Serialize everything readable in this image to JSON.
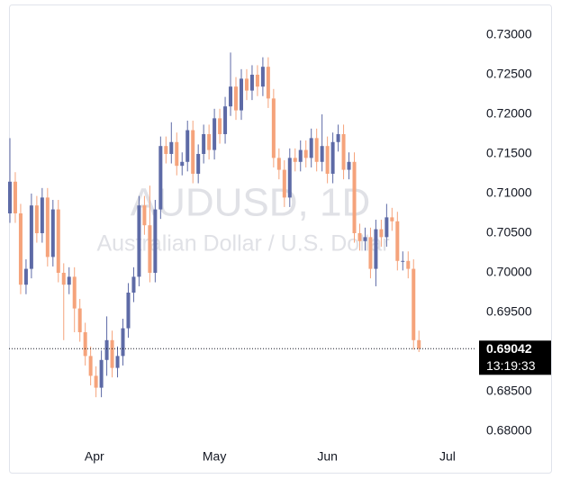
{
  "chart_data": {
    "type": "candlestick",
    "title": "AUDUSD, 1D",
    "subtitle": "Australian Dollar / U.S. Dollar",
    "open": [
      0.7075,
      0.7115,
      0.7075,
      0.6985,
      0.7005,
      0.7085,
      0.705,
      0.7095,
      0.702,
      0.708,
      0.7,
      0.6985,
      0.6995,
      0.6955,
      0.6925,
      0.6895,
      0.687,
      0.6855,
      0.689,
      0.6915,
      0.688,
      0.6895,
      0.693,
      0.6975,
      0.6995,
      0.7085,
      0.706,
      0.7,
      0.708,
      0.716,
      0.715,
      0.7165,
      0.7135,
      0.714,
      0.718,
      0.7125,
      0.715,
      0.7175,
      0.7155,
      0.7195,
      0.7175,
      0.721,
      0.7235,
      0.7205,
      0.7245,
      0.723,
      0.725,
      0.7235,
      0.726,
      0.722,
      0.7145,
      0.713,
      0.7095,
      0.7145,
      0.714,
      0.7155,
      0.7145,
      0.717,
      0.714,
      0.716,
      0.7125,
      0.7165,
      0.7175,
      0.713,
      0.714,
      0.705,
      0.704,
      0.7045,
      0.7005,
      0.7055,
      0.7045,
      0.707,
      0.7065,
      0.7015,
      0.7015,
      0.7005,
      0.6915
    ],
    "high": [
      0.717,
      0.7127,
      0.7087,
      0.7017,
      0.71,
      0.7097,
      0.7107,
      0.7107,
      0.7092,
      0.7092,
      0.7012,
      0.7007,
      0.7007,
      0.6967,
      0.6937,
      0.6907,
      0.6882,
      0.6902,
      0.6945,
      0.6927,
      0.6907,
      0.6942,
      0.6987,
      0.7007,
      0.7097,
      0.7097,
      0.711,
      0.7092,
      0.7172,
      0.7172,
      0.719,
      0.7177,
      0.7152,
      0.7192,
      0.7192,
      0.7162,
      0.7187,
      0.7187,
      0.7207,
      0.7207,
      0.7222,
      0.7278,
      0.7247,
      0.7257,
      0.7257,
      0.7262,
      0.7262,
      0.7272,
      0.7272,
      0.7232,
      0.7157,
      0.7142,
      0.7157,
      0.7157,
      0.7167,
      0.7167,
      0.7182,
      0.7182,
      0.72,
      0.7172,
      0.7177,
      0.7187,
      0.7187,
      0.7152,
      0.7152,
      0.7062,
      0.7057,
      0.7057,
      0.7067,
      0.7067,
      0.7087,
      0.7082,
      0.7077,
      0.7027,
      0.7027,
      0.7017,
      0.6927
    ],
    "low": [
      0.7063,
      0.7063,
      0.6973,
      0.6973,
      0.6993,
      0.7038,
      0.7038,
      0.7008,
      0.7008,
      0.6988,
      0.6915,
      0.6973,
      0.6925,
      0.6913,
      0.6883,
      0.6858,
      0.6843,
      0.6843,
      0.687,
      0.6868,
      0.6868,
      0.6883,
      0.6918,
      0.6963,
      0.6983,
      0.7048,
      0.6988,
      0.6988,
      0.7068,
      0.7138,
      0.7138,
      0.7123,
      0.7123,
      0.7128,
      0.7113,
      0.7113,
      0.7138,
      0.7143,
      0.7143,
      0.7163,
      0.7163,
      0.7198,
      0.7193,
      0.7193,
      0.7218,
      0.7218,
      0.7223,
      0.7223,
      0.7208,
      0.7133,
      0.7118,
      0.7083,
      0.7083,
      0.7128,
      0.7128,
      0.7133,
      0.7133,
      0.7128,
      0.7128,
      0.7113,
      0.7113,
      0.7153,
      0.7118,
      0.7118,
      0.7038,
      0.7028,
      0.7028,
      0.6993,
      0.6983,
      0.7033,
      0.7033,
      0.7053,
      0.7003,
      0.7003,
      0.6993,
      0.6903,
      0.69
    ],
    "close": [
      0.7115,
      0.7075,
      0.6985,
      0.7005,
      0.7085,
      0.705,
      0.7095,
      0.702,
      0.708,
      0.7,
      0.6985,
      0.6995,
      0.6955,
      0.6925,
      0.6895,
      0.687,
      0.6855,
      0.689,
      0.6915,
      0.688,
      0.6895,
      0.693,
      0.6975,
      0.6995,
      0.7085,
      0.706,
      0.7,
      0.708,
      0.716,
      0.715,
      0.7165,
      0.7135,
      0.714,
      0.718,
      0.7125,
      0.715,
      0.7175,
      0.7155,
      0.7195,
      0.7175,
      0.721,
      0.7235,
      0.7205,
      0.7245,
      0.723,
      0.725,
      0.7235,
      0.726,
      0.722,
      0.7145,
      0.713,
      0.7095,
      0.7145,
      0.714,
      0.7155,
      0.7145,
      0.717,
      0.714,
      0.716,
      0.7125,
      0.7165,
      0.7175,
      0.713,
      0.714,
      0.705,
      0.704,
      0.7045,
      0.7005,
      0.7055,
      0.7045,
      0.707,
      0.7065,
      0.7015,
      0.7015,
      0.7005,
      0.6915,
      0.69042
    ],
    "up_color": "#5d6aa6",
    "down_color": "#f5a37b",
    "ylim": [
      0.67875,
      0.73352
    ],
    "yticks": [
      {
        "value": 0.68,
        "label": "0.68000"
      },
      {
        "value": 0.685,
        "label": "0.68500"
      },
      {
        "value": 0.69,
        "label": "0.69000"
      },
      {
        "value": 0.695,
        "label": "0.69500"
      },
      {
        "value": 0.7,
        "label": "0.70000"
      },
      {
        "value": 0.705,
        "label": "0.70500"
      },
      {
        "value": 0.71,
        "label": "0.71000"
      },
      {
        "value": 0.715,
        "label": "0.71500"
      },
      {
        "value": 0.72,
        "label": "0.72000"
      },
      {
        "value": 0.725,
        "label": "0.72500"
      },
      {
        "value": 0.73,
        "label": "0.73000"
      }
    ],
    "xlim": [
      -0.5,
      86
    ],
    "xticks": [
      {
        "value": 15.7,
        "label": "Apr"
      },
      {
        "value": 38,
        "label": "May"
      },
      {
        "value": 59,
        "label": "Jun"
      },
      {
        "value": 81.3,
        "label": "Jul"
      }
    ],
    "last_price": 0.69042,
    "countdown": "13:19:33"
  }
}
